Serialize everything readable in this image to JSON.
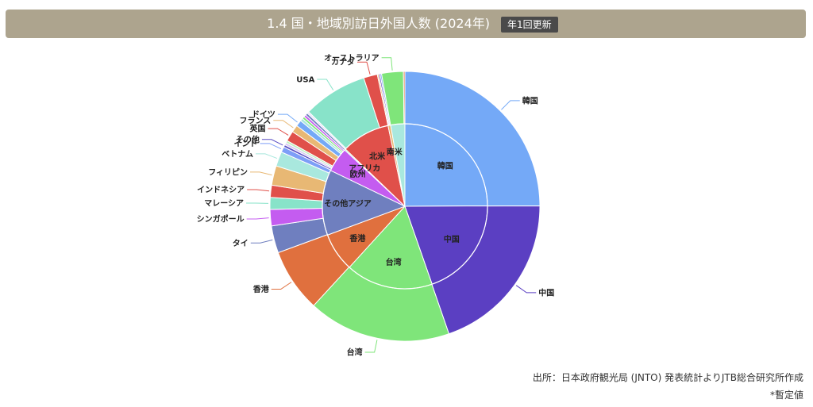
{
  "header": {
    "title": "1.4 国・地域別訪日外国人数 (2024年)",
    "badge": "年1回更新"
  },
  "footer": {
    "source": "出所：日本政府観光局 (JNTO) 発表統計よりJTB総合研究所作成",
    "note": "*暫定値"
  },
  "chart_data": {
    "type": "pie",
    "title": "1.4 国・地域別訪日外国人数 (2024年)",
    "outer_ring": [
      {
        "name": "韓国",
        "value": 8818,
        "color": "#74a9f7"
      },
      {
        "name": "中国",
        "value": 6981,
        "color": "#5b3fc2"
      },
      {
        "name": "台湾",
        "value": 6045,
        "color": "#7fe57a"
      },
      {
        "name": "香港",
        "value": 2683,
        "color": "#e0703e"
      },
      {
        "name": "タイ",
        "value": 1148,
        "color": "#6f7fbf"
      },
      {
        "name": "シンガポール",
        "value": 691,
        "color": "#c45cf0"
      },
      {
        "name": "マレーシア",
        "value": 506,
        "color": "#88e3c9"
      },
      {
        "name": "インドネシア",
        "value": 517,
        "color": "#e0504a"
      },
      {
        "name": "フィリピン",
        "value": 822,
        "color": "#e8b874"
      },
      {
        "name": "ベトナム",
        "value": 617,
        "color": "#a9e8de"
      },
      {
        "name": "インド",
        "value": 233,
        "color": "#7d9ef7"
      },
      {
        "name": "その他",
        "value": 100,
        "color": "#5a4ec4"
      },
      {
        "name": "その他",
        "value": 100,
        "color": "#d8c8f4"
      },
      {
        "name": "その他",
        "value": 100,
        "color": "#c0f0c0"
      },
      {
        "name": "英国",
        "value": 436,
        "color": "#e0504a"
      },
      {
        "name": "フランス",
        "value": 305,
        "color": "#e8b874"
      },
      {
        "name": "ドイツ",
        "value": 263,
        "color": "#74a9f7"
      },
      {
        "name": "その他",
        "value": 120,
        "color": "#a9e8de"
      },
      {
        "name": "その他",
        "value": 100,
        "color": "#7fe57a"
      },
      {
        "name": "その他",
        "value": 100,
        "color": "#c45cf0"
      },
      {
        "name": "その他",
        "value": 100,
        "color": "#6f7fbf"
      },
      {
        "name": "その他",
        "value": 80,
        "color": "#e8e0f8"
      },
      {
        "name": "USA",
        "value": 2724,
        "color": "#88e3c9"
      },
      {
        "name": "カナダ",
        "value": 583,
        "color": "#e0504a"
      },
      {
        "name": "その他",
        "value": 60,
        "color": "#e8b874"
      },
      {
        "name": "その他",
        "value": 60,
        "color": "#5b3fc2"
      },
      {
        "name": "その他",
        "value": 60,
        "color": "#74a9f7"
      },
      {
        "name": "オーストラリア",
        "value": 921,
        "color": "#7fe57a"
      },
      {
        "name": "その他",
        "value": 60,
        "color": "#e0703e"
      }
    ],
    "inner_ring": [
      {
        "name": "韓国",
        "value": 8818,
        "color": "#74a9f7"
      },
      {
        "name": "中国",
        "value": 6981,
        "color": "#5b3fc2"
      },
      {
        "name": "台湾",
        "value": 6045,
        "color": "#7fe57a"
      },
      {
        "name": "香港",
        "value": 2683,
        "color": "#e0703e"
      },
      {
        "name": "その他アジア",
        "value": 4534,
        "color": "#6f7fbf"
      },
      {
        "name": "欧州",
        "value": 1704,
        "color": "#c45cf0"
      },
      {
        "name": "アフリカ",
        "value": 80,
        "color": "#88e3c9"
      },
      {
        "name": "北米",
        "value": 3367,
        "color": "#e0504a"
      },
      {
        "name": "南米",
        "value": 180,
        "color": "#e8b874"
      },
      {
        "name": "オセアニア",
        "value": 981,
        "color": "#a9e8de"
      }
    ],
    "outer_labels": [
      "韓国",
      "中国",
      "台湾",
      "香港",
      "タイ",
      "シンガポール",
      "マレーシア",
      "インドネシア",
      "フィリピン",
      "ベトナム",
      "インド",
      "その他",
      "英国",
      "フランス",
      "ドイツ",
      "USA",
      "カナダ",
      "オーストラリア"
    ],
    "inner_labels": [
      "韓国",
      "中国",
      "台湾",
      "香港",
      "その他アジア",
      "欧州",
      "アフリカ",
      "北米",
      "南米"
    ],
    "legend": "none"
  }
}
